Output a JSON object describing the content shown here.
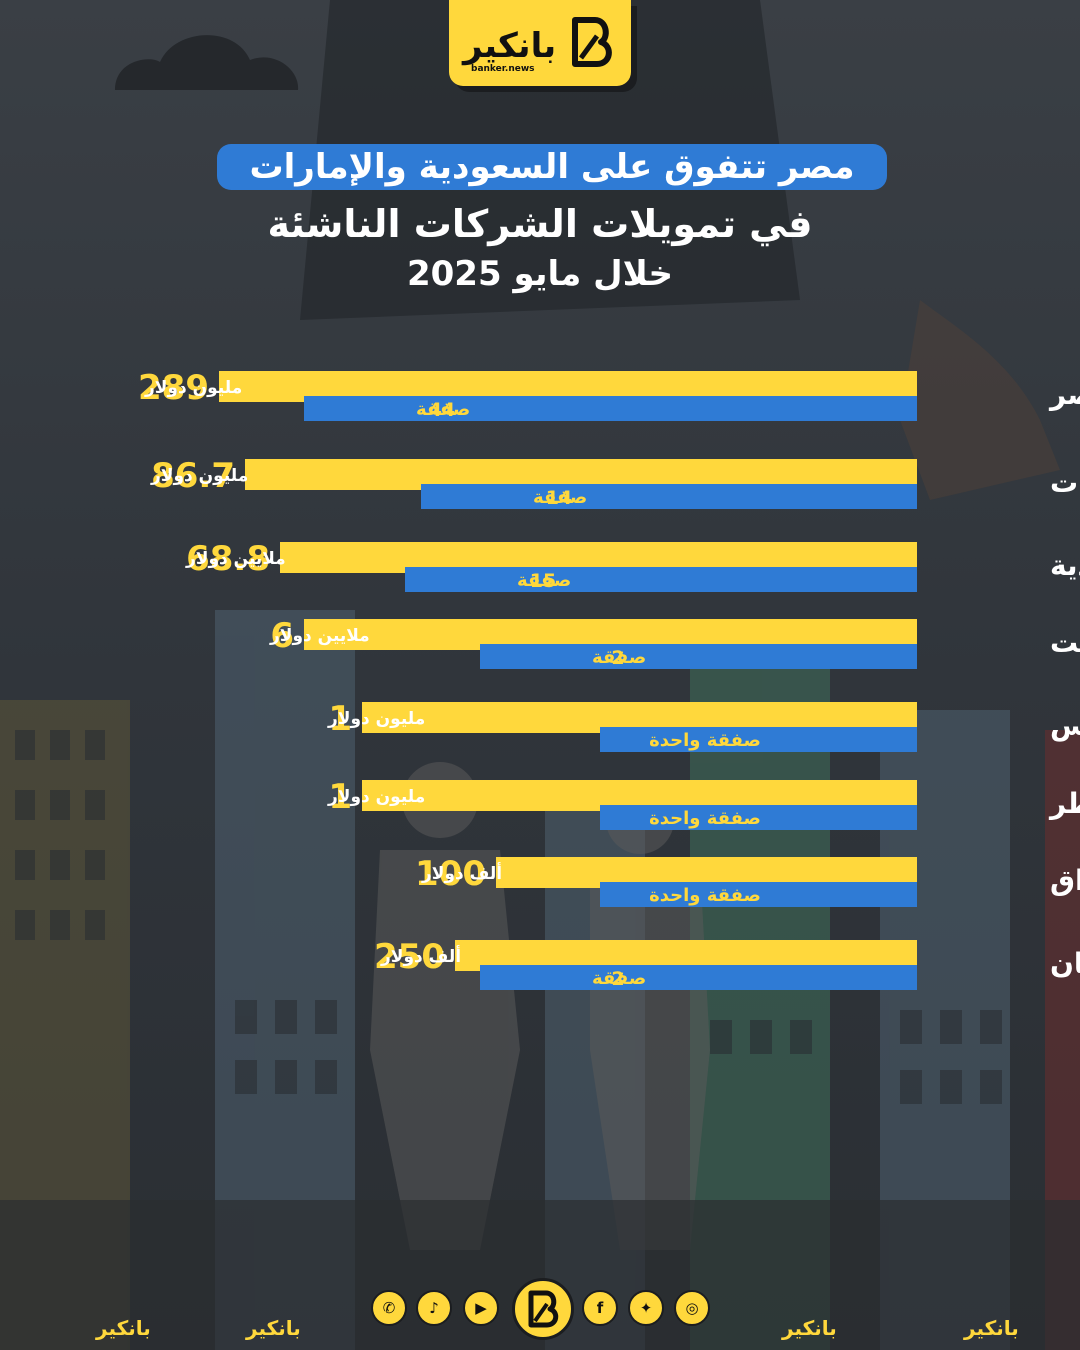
{
  "brand": {
    "name": "بانكير",
    "domain": "banker.news"
  },
  "title": {
    "line1": "مصر تتفوق على السعودية والإمارات",
    "line2": "في تمويلات الشركات الناشئة",
    "line3": "خلال مايو 2025"
  },
  "colors": {
    "funding_bar": "#ffd83c",
    "deals_bar": "#2f7bd5",
    "title_pill": "#2f7bd5",
    "brand": "#ffd83c"
  },
  "social_icons": [
    "whatsapp-icon",
    "tiktok-icon",
    "youtube-icon",
    "facebook-icon",
    "twitter-icon",
    "instagram-icon"
  ],
  "chart_data": {
    "type": "bar",
    "orientation": "horizontal",
    "series": [
      {
        "key": "funding"
      },
      {
        "key": "deals"
      }
    ],
    "rows": [
      {
        "country": "مصر",
        "funding_value": "289",
        "funding_unit": "مليون دولار",
        "funding_usd_millions": 289,
        "deals_value": "44",
        "deals_unit": "صفقة",
        "deals": 44
      },
      {
        "country": "الإمارات",
        "funding_value": "86.7",
        "funding_unit": "مليون دولار",
        "funding_usd_millions": 86.7,
        "deals_value": "14",
        "deals_unit": "صفقة",
        "deals": 14
      },
      {
        "country": "السعودية",
        "funding_value": "68.8",
        "funding_unit": "ملايين دولار",
        "funding_usd_millions": 68.8,
        "deals_value": "15",
        "deals_unit": "صفقة",
        "deals": 15
      },
      {
        "country": "الكويت",
        "funding_value": "6",
        "funding_unit": "ملايين دولار",
        "funding_usd_millions": 6,
        "deals_value": "2",
        "deals_unit": "صفقة",
        "deals": 2
      },
      {
        "country": "تونس",
        "funding_value": "1",
        "funding_unit": "مليون دولار",
        "funding_usd_millions": 1,
        "deals_value": "",
        "deals_unit": "صفقة واحدة",
        "deals": 1
      },
      {
        "country": "قطر",
        "funding_value": "1",
        "funding_unit": "مليون دولار",
        "funding_usd_millions": 1,
        "deals_value": "",
        "deals_unit": "صفقة واحدة",
        "deals": 1
      },
      {
        "country": "العراق",
        "funding_value": "100",
        "funding_unit": "ألف دولار",
        "funding_usd_millions": 0.1,
        "deals_value": "",
        "deals_unit": "صفقة واحدة",
        "deals": 1
      },
      {
        "country": "عُمان",
        "funding_value": "250",
        "funding_unit": "ألف دولار",
        "funding_usd_millions": 0.25,
        "deals_value": "2",
        "deals_unit": "صفقة",
        "deals": 2
      }
    ]
  }
}
